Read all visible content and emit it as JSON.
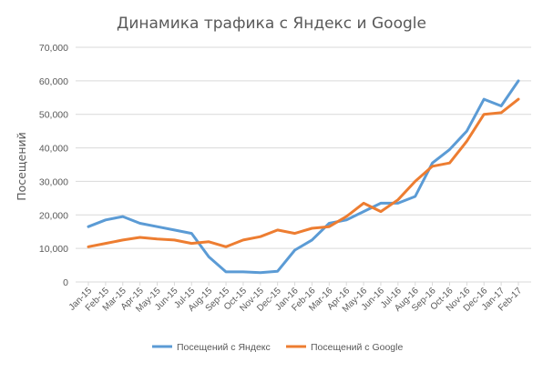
{
  "chart_data": {
    "type": "line",
    "title": "Динамика трафика с Яндекс и Google",
    "xlabel": "",
    "ylabel": "Посещений",
    "ylim": [
      0,
      70000
    ],
    "y_ticks": [
      "0",
      "10,000",
      "20,000",
      "30,000",
      "40,000",
      "50,000",
      "60,000",
      "70,000"
    ],
    "y_tick_values": [
      0,
      10000,
      20000,
      30000,
      40000,
      50000,
      60000,
      70000
    ],
    "grid": true,
    "legend_position": "bottom",
    "categories": [
      "Jan-15",
      "Feb-15",
      "Mar-15",
      "Apr-15",
      "May-15",
      "Jun-15",
      "Jul-15",
      "Aug-15",
      "Sep-15",
      "Oct-15",
      "Nov-15",
      "Dec-15",
      "Jan-16",
      "Feb-16",
      "Mar-16",
      "Apr-16",
      "May-16",
      "Jun-16",
      "Jul-16",
      "Aug-16",
      "Sep-16",
      "Oct-16",
      "Nov-16",
      "Dec-16",
      "Jan-17",
      "Feb-17"
    ],
    "series": [
      {
        "name": "Посещений с Яндекс",
        "color": "#5b9bd5",
        "values": [
          16500,
          18500,
          19500,
          17500,
          16500,
          15500,
          14500,
          7500,
          3000,
          3000,
          2800,
          3200,
          9500,
          12500,
          17500,
          18500,
          21000,
          23500,
          23500,
          25500,
          35500,
          39500,
          45000,
          54500,
          52500,
          60000
        ]
      },
      {
        "name": "Посещений с Google",
        "color": "#ed7d31",
        "values": [
          10500,
          11500,
          12500,
          13300,
          12800,
          12500,
          11500,
          12000,
          10500,
          12500,
          13500,
          15500,
          14500,
          16000,
          16500,
          19500,
          23500,
          21000,
          24500,
          30000,
          34500,
          35500,
          42000,
          50000,
          50500,
          54500
        ]
      }
    ]
  }
}
